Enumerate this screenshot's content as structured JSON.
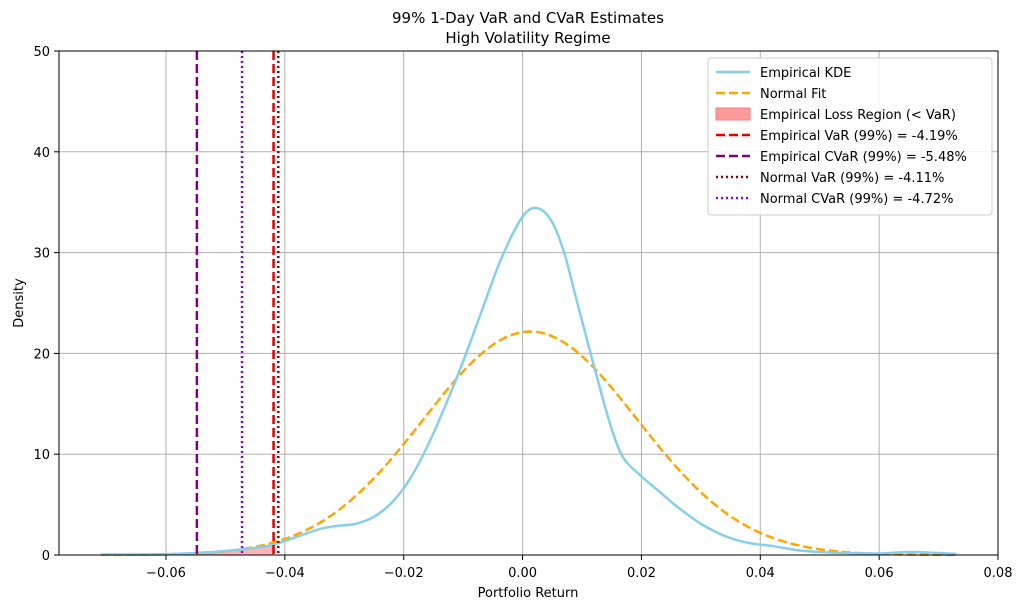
{
  "chart_data": {
    "type": "line",
    "title": "99% 1-Day VaR and CVaR Estimates",
    "subtitle": "High Volatility Regime",
    "xlabel": "Portfolio Return",
    "ylabel": "Density",
    "xlim": [
      -0.078,
      0.08
    ],
    "ylim": [
      0,
      50
    ],
    "x_ticks": [
      -0.06,
      -0.04,
      -0.02,
      0.0,
      0.02,
      0.04,
      0.06,
      0.08
    ],
    "x_tick_labels": [
      "−0.06",
      "−0.04",
      "−0.02",
      "0.00",
      "0.02",
      "0.04",
      "0.06",
      "0.08"
    ],
    "y_ticks": [
      0,
      10,
      20,
      30,
      40,
      50
    ],
    "y_tick_labels": [
      "0",
      "10",
      "20",
      "30",
      "40",
      "50"
    ],
    "grid": true,
    "legend_position": "top-right",
    "series": [
      {
        "name": "Empirical KDE",
        "color": "#87ceeb",
        "style": "solid",
        "x": [
          -0.071,
          -0.065,
          -0.06,
          -0.055,
          -0.05,
          -0.045,
          -0.042,
          -0.04,
          -0.037,
          -0.034,
          -0.031,
          -0.028,
          -0.025,
          -0.022,
          -0.019,
          -0.016,
          -0.013,
          -0.01,
          -0.007,
          -0.004,
          -0.001,
          0.001,
          0.003,
          0.005,
          0.007,
          0.009,
          0.011,
          0.013,
          0.015,
          0.017,
          0.02,
          0.023,
          0.026,
          0.03,
          0.034,
          0.038,
          0.042,
          0.046,
          0.05,
          0.055,
          0.06,
          0.065,
          0.07,
          0.073
        ],
        "y": [
          0.05,
          0.05,
          0.08,
          0.2,
          0.4,
          0.7,
          1.0,
          1.4,
          2.0,
          2.6,
          2.9,
          3.1,
          3.8,
          5.2,
          7.5,
          10.8,
          14.8,
          19.2,
          24.0,
          28.8,
          32.6,
          34.2,
          34.3,
          33.0,
          30.0,
          25.5,
          21.0,
          16.6,
          12.5,
          9.6,
          7.8,
          6.3,
          4.8,
          3.1,
          1.9,
          1.2,
          0.9,
          0.5,
          0.3,
          0.2,
          0.15,
          0.3,
          0.2,
          0.1
        ]
      },
      {
        "name": "Normal Fit",
        "color": "#ffa500",
        "style": "dashed",
        "mean": 0.0013,
        "std": 0.018,
        "x_range": [
          -0.071,
          0.073
        ]
      }
    ],
    "shaded_region": {
      "name": "Empirical Loss Region (< VaR)",
      "color": "#ff9a9a",
      "x_from": -0.071,
      "x_to": -0.0419,
      "follows_series": "Empirical KDE"
    },
    "vertical_lines": [
      {
        "name": "Empirical VaR (99%) = -4.19%",
        "x": -0.0419,
        "color": "#e00000",
        "style": "dashed"
      },
      {
        "name": "Empirical CVaR (99%) = -5.48%",
        "x": -0.0548,
        "color": "#800080",
        "style": "dashed"
      },
      {
        "name": "Normal VaR (99%) = -4.11%",
        "x": -0.0411,
        "color": "#8b0000",
        "style": "dotted"
      },
      {
        "name": "Normal CVaR (99%) = -4.72%",
        "x": -0.0472,
        "color": "#9400d3",
        "style": "dotted"
      }
    ],
    "legend": [
      {
        "label": "Empirical KDE",
        "kind": "line",
        "color": "#87ceeb",
        "style": "solid"
      },
      {
        "label": "Normal Fit",
        "kind": "line",
        "color": "#ffa500",
        "style": "dashed"
      },
      {
        "label": "Empirical Loss Region (< VaR)",
        "kind": "patch",
        "color": "#ff9a9a",
        "style": "fill"
      },
      {
        "label": "Empirical VaR (99%) = -4.19%",
        "kind": "line",
        "color": "#e00000",
        "style": "dashed"
      },
      {
        "label": "Empirical CVaR (99%) = -5.48%",
        "kind": "line",
        "color": "#800080",
        "style": "dashed"
      },
      {
        "label": "Normal VaR (99%) = -4.11%",
        "kind": "line",
        "color": "#8b0000",
        "style": "dotted"
      },
      {
        "label": "Normal CVaR (99%) = -4.72%",
        "kind": "line",
        "color": "#9400d3",
        "style": "dotted"
      }
    ]
  }
}
